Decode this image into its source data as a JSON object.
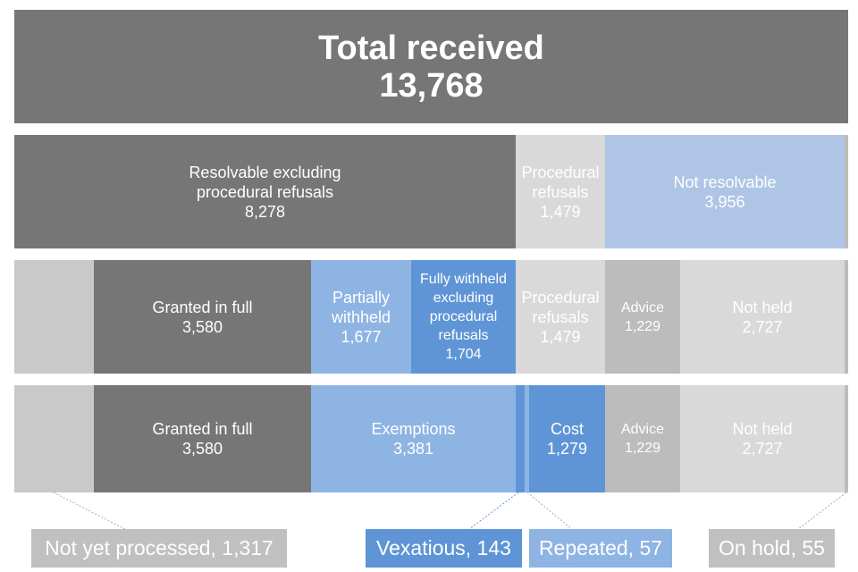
{
  "total": {
    "label": "Total received",
    "value": "13,768"
  },
  "row1": {
    "resolvable": {
      "label1": "Resolvable excluding",
      "label2": "procedural refusals",
      "value": "8,278"
    },
    "procedural": {
      "label1": "Procedural",
      "label2": "refusals",
      "value": "1,479"
    },
    "not_resolvable": {
      "label": "Not resolvable",
      "value": "3,956"
    }
  },
  "row2": {
    "granted": {
      "label": "Granted in full",
      "value": "3,580"
    },
    "partially": {
      "label1": "Partially",
      "label2": "withheld",
      "value": "1,677"
    },
    "fully": {
      "label1": "Fully withheld",
      "label2": "excluding",
      "label3": "procedural",
      "label4": "refusals",
      "value": "1,704"
    },
    "procedural": {
      "label1": "Procedural",
      "label2": "refusals",
      "value": "1,479"
    },
    "advice": {
      "label": "Advice",
      "value": "1,229"
    },
    "not_held": {
      "label": "Not held",
      "value": "2,727"
    }
  },
  "row3": {
    "granted": {
      "label": "Granted in full",
      "value": "3,580"
    },
    "exemptions": {
      "label": "Exemptions",
      "value": "3,381"
    },
    "cost": {
      "label": "Cost",
      "value": "1,279"
    },
    "advice": {
      "label": "Advice",
      "value": "1,229"
    },
    "not_held": {
      "label": "Not held",
      "value": "2,727"
    }
  },
  "callouts": {
    "not_yet": "Not yet processed, 1,317",
    "vexatious": "Vexatious, 143",
    "repeated": "Repeated, 57",
    "on_hold": "On hold, 55"
  },
  "colors": {
    "dark_grey": "#767676",
    "light_grey": "#c8c8c8",
    "light_blue": "#aec5e6",
    "mid_blue": "#8eb4e3",
    "dark_blue": "#5f95d6"
  }
}
